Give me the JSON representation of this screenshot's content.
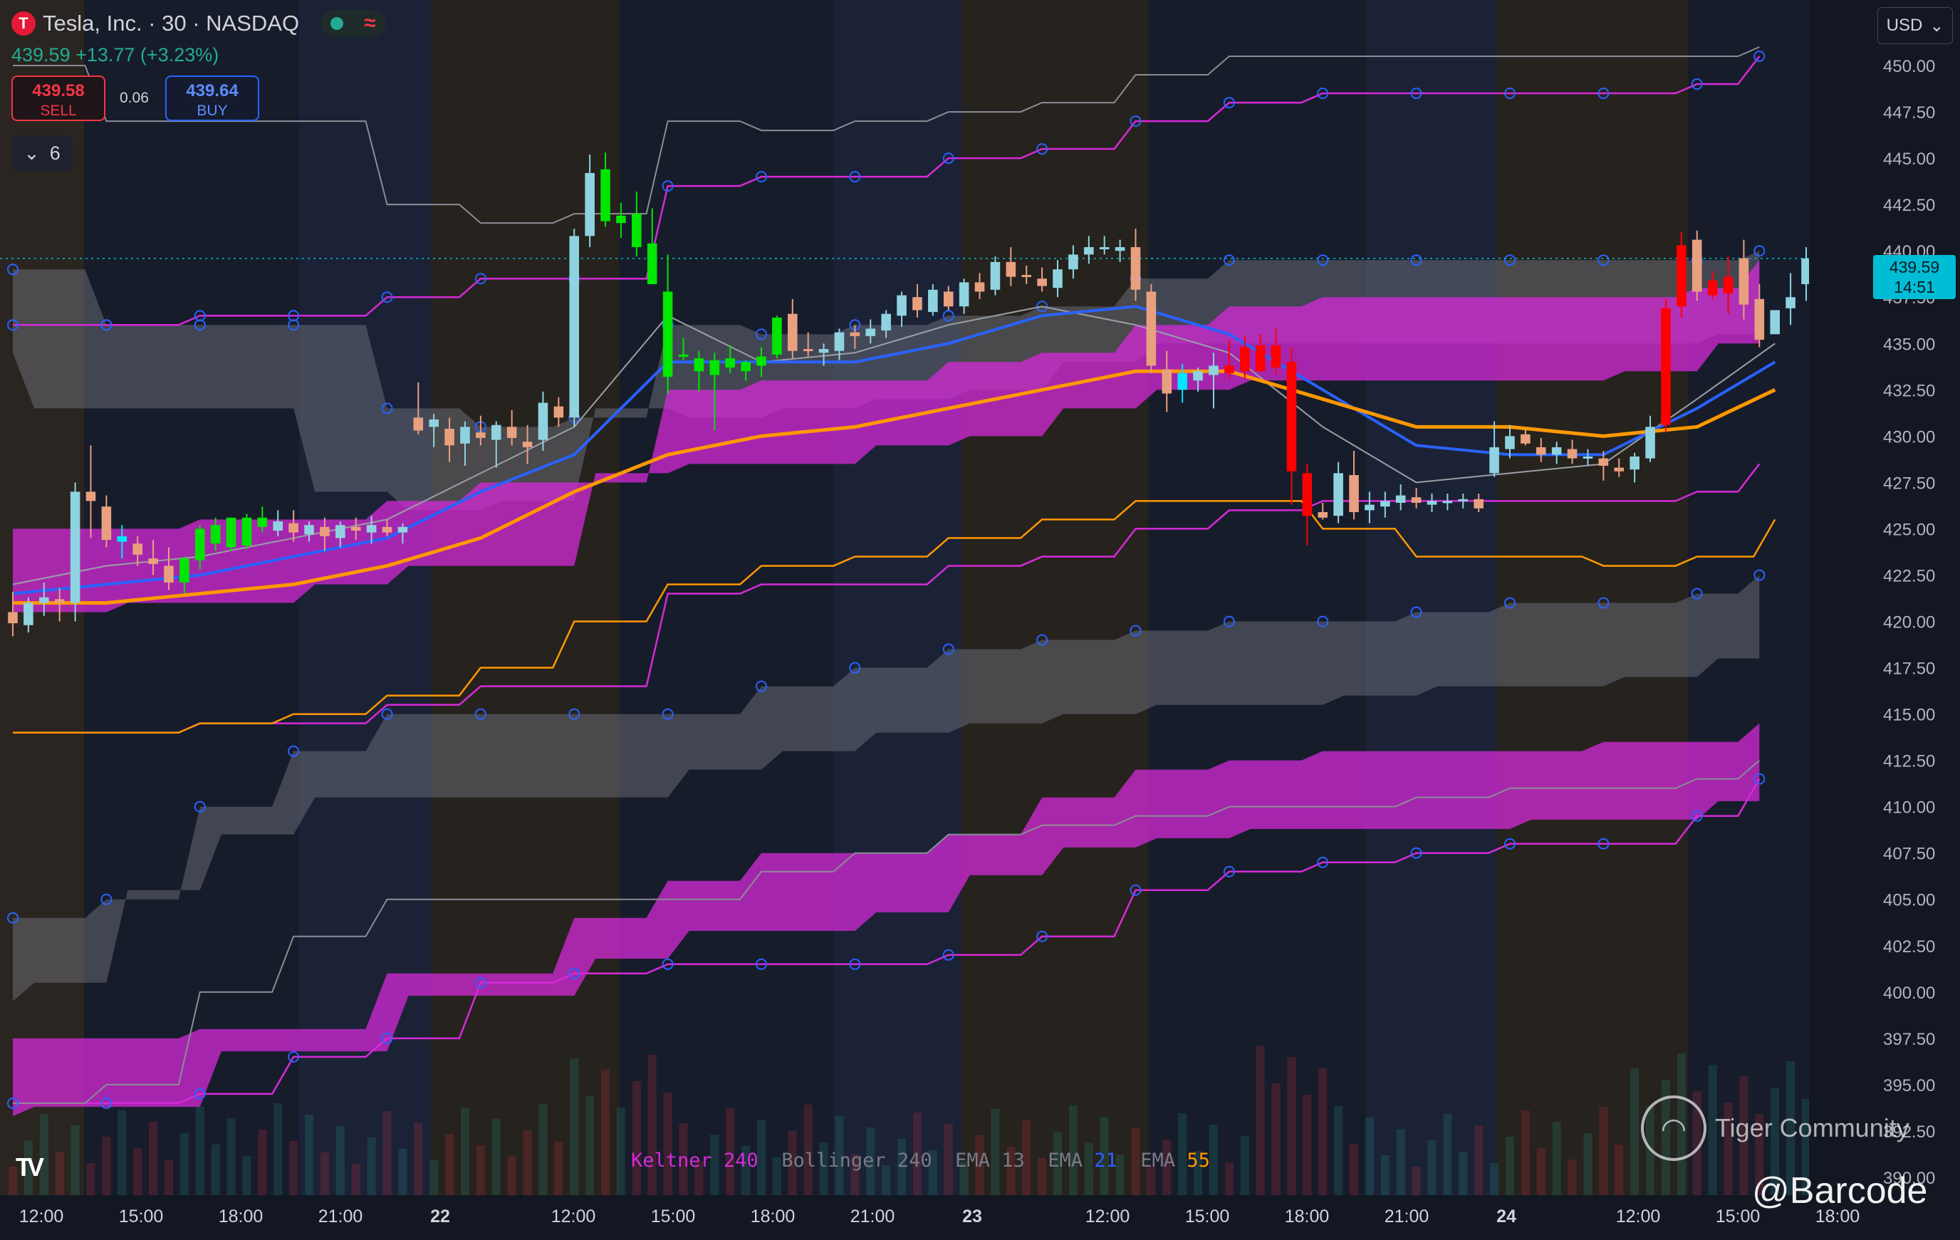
{
  "header": {
    "title": "Tesla, Inc. · 30 · NASDAQ",
    "logo_letter": "T",
    "quote": "439.59 +13.77 (+3.23%)"
  },
  "trade": {
    "sell_price": "439.58",
    "sell_label": "SELL",
    "buy_price": "439.64",
    "buy_label": "BUY",
    "spread": "0.06"
  },
  "indicator_toggle": {
    "count": "6"
  },
  "currency": "USD",
  "last_price": {
    "price": "439.59",
    "countdown": "14:51"
  },
  "legend": [
    {
      "name": "Keltner",
      "param": "240",
      "color": "#d62ad8"
    },
    {
      "name": "Bollinger",
      "param": "240",
      "color": "#787b86"
    },
    {
      "name": "EMA",
      "param": "13",
      "color": "#787b86"
    },
    {
      "name": "EMA",
      "param": "21",
      "color": "#2962ff"
    },
    {
      "name": "EMA",
      "param": "55",
      "color": "#ff9800"
    }
  ],
  "watermark": {
    "brand": "Tiger Community",
    "handle": "@Barcode"
  },
  "colors": {
    "background": "#131722",
    "bull_candle": "#8fd3e0",
    "bear_candle": "#e8a07f",
    "strong_bull": "#00e600",
    "strong_bear": "#ff0000",
    "keltner": "#d62ad8",
    "bollinger": "#8a8d96",
    "ema13": "#9aa0a6",
    "ema21": "#2962ff",
    "ema55": "#ff9800",
    "last_price": "#00bcd4"
  },
  "chart_data": {
    "type": "candlestick",
    "title": "",
    "ylim": [
      388.5,
      452
    ],
    "y_ticks": [
      "450.00",
      "447.50",
      "445.00",
      "442.50",
      "440.00",
      "437.50",
      "435.00",
      "432.50",
      "430.00",
      "427.50",
      "425.00",
      "422.50",
      "420.00",
      "417.50",
      "415.00",
      "412.50",
      "410.00",
      "407.50",
      "405.00",
      "402.50",
      "400.00",
      "397.50",
      "395.00",
      "392.50",
      "390.00"
    ],
    "x_ticks": [
      "12:00",
      "15:00",
      "18:00",
      "21:00",
      "22",
      "12:00",
      "15:00",
      "18:00",
      "21:00",
      "23",
      "12:00",
      "15:00",
      "18:00",
      "21:00",
      "24",
      "12:00",
      "15:00",
      "18:00"
    ],
    "candles": [
      [
        420.5,
        421.6,
        419.2,
        419.9
      ],
      [
        419.8,
        421.3,
        419.4,
        421.0
      ],
      [
        421.0,
        422.1,
        420.3,
        421.3
      ],
      [
        421.2,
        421.8,
        420.0,
        421.0
      ],
      [
        421.0,
        427.5,
        420.0,
        427.0
      ],
      [
        427.0,
        429.5,
        424.5,
        426.5
      ],
      [
        426.2,
        426.8,
        424.0,
        424.4
      ],
      [
        424.3,
        425.2,
        423.4,
        424.6
      ],
      [
        424.2,
        424.6,
        423.0,
        423.6
      ],
      [
        423.4,
        424.4,
        422.5,
        423.1
      ],
      [
        423.0,
        424.0,
        421.7,
        422.1
      ],
      [
        422.1,
        423.5,
        421.5,
        423.4
      ],
      [
        423.3,
        425.2,
        422.8,
        425.0
      ],
      [
        424.2,
        425.6,
        423.8,
        425.2
      ],
      [
        424.0,
        425.6,
        423.8,
        425.6
      ],
      [
        424.1,
        425.8,
        423.9,
        425.6
      ],
      [
        425.6,
        426.2,
        424.8,
        425.1
      ],
      [
        424.9,
        426.0,
        424.6,
        425.4
      ],
      [
        425.3,
        426.0,
        424.3,
        424.8
      ],
      [
        424.7,
        425.4,
        424.3,
        425.2
      ],
      [
        425.1,
        425.6,
        423.8,
        424.6
      ],
      [
        424.5,
        425.4,
        424.0,
        425.2
      ],
      [
        425.1,
        425.6,
        424.4,
        424.9
      ],
      [
        424.8,
        425.7,
        424.2,
        425.2
      ],
      [
        425.1,
        425.5,
        424.6,
        424.8
      ],
      [
        424.8,
        425.3,
        424.2,
        425.1
      ],
      [
        431.0,
        432.9,
        430.1,
        430.3
      ],
      [
        430.5,
        431.2,
        429.4,
        430.9
      ],
      [
        430.4,
        431.0,
        428.6,
        429.5
      ],
      [
        429.6,
        430.8,
        428.4,
        430.5
      ],
      [
        430.2,
        431.1,
        429.5,
        429.9
      ],
      [
        429.8,
        430.8,
        428.3,
        430.6
      ],
      [
        430.5,
        431.4,
        429.5,
        429.9
      ],
      [
        429.7,
        430.6,
        428.5,
        429.4
      ],
      [
        429.8,
        432.4,
        429.2,
        431.8
      ],
      [
        431.6,
        432.1,
        430.5,
        431.0
      ],
      [
        431.0,
        441.2,
        430.5,
        440.8
      ],
      [
        440.8,
        445.2,
        440.2,
        444.2
      ],
      [
        444.4,
        445.3,
        441.3,
        441.6
      ],
      [
        441.5,
        442.6,
        440.7,
        441.9
      ],
      [
        442.0,
        443.2,
        439.7,
        440.2
      ],
      [
        440.4,
        442.3,
        438.2,
        438.2
      ],
      [
        437.8,
        439.8,
        432.3,
        433.2
      ],
      [
        434.4,
        435.3,
        434.1,
        434.3
      ],
      [
        434.2,
        434.6,
        432.4,
        433.5
      ],
      [
        433.3,
        434.5,
        430.3,
        434.1
      ],
      [
        434.2,
        434.9,
        433.4,
        433.7
      ],
      [
        433.5,
        434.1,
        433.0,
        434.0
      ],
      [
        433.8,
        434.8,
        433.2,
        434.3
      ],
      [
        434.4,
        436.5,
        434.2,
        436.4
      ],
      [
        436.6,
        437.4,
        434.2,
        434.6
      ],
      [
        434.7,
        435.6,
        434.3,
        434.6
      ],
      [
        434.5,
        435.0,
        433.8,
        434.7
      ],
      [
        434.6,
        435.8,
        434.1,
        435.6
      ],
      [
        435.6,
        436.0,
        434.7,
        435.4
      ],
      [
        435.4,
        436.3,
        435.0,
        435.8
      ],
      [
        435.7,
        436.8,
        435.3,
        436.6
      ],
      [
        436.5,
        437.8,
        435.9,
        437.6
      ],
      [
        437.5,
        438.2,
        436.4,
        436.8
      ],
      [
        436.7,
        438.2,
        436.5,
        437.9
      ],
      [
        437.8,
        438.1,
        436.8,
        437.0
      ],
      [
        437.0,
        438.5,
        436.6,
        438.3
      ],
      [
        438.3,
        438.8,
        437.4,
        437.8
      ],
      [
        437.9,
        439.7,
        437.6,
        439.4
      ],
      [
        439.4,
        440.2,
        438.1,
        438.6
      ],
      [
        438.7,
        439.2,
        438.2,
        438.6
      ],
      [
        438.5,
        439.1,
        437.8,
        438.1
      ],
      [
        438.0,
        439.5,
        437.5,
        439.0
      ],
      [
        439.0,
        440.3,
        438.5,
        439.8
      ],
      [
        439.8,
        440.8,
        439.3,
        440.2
      ],
      [
        440.2,
        440.8,
        439.8,
        440.2
      ],
      [
        440.0,
        440.6,
        439.4,
        440.2
      ],
      [
        440.2,
        441.2,
        437.3,
        437.9
      ],
      [
        437.8,
        438.2,
        433.4,
        433.8
      ],
      [
        433.6,
        434.6,
        431.3,
        432.3
      ],
      [
        432.5,
        433.9,
        431.8,
        433.4
      ],
      [
        433.0,
        433.7,
        432.4,
        433.5
      ],
      [
        433.3,
        434.5,
        431.5,
        433.8
      ],
      [
        433.8,
        435.2,
        433.1,
        433.4
      ],
      [
        433.5,
        435.4,
        433.1,
        434.8
      ],
      [
        434.9,
        435.5,
        433.7,
        433.5
      ],
      [
        434.9,
        435.8,
        433.3,
        433.7
      ],
      [
        434.0,
        434.8,
        426.3,
        428.1
      ],
      [
        428.0,
        428.5,
        424.1,
        425.7
      ],
      [
        425.9,
        426.4,
        425.5,
        425.6
      ],
      [
        425.7,
        428.6,
        425.3,
        428.0
      ],
      [
        427.9,
        429.2,
        425.5,
        425.9
      ],
      [
        426.0,
        427.0,
        425.3,
        426.3
      ],
      [
        426.2,
        427.0,
        425.6,
        426.5
      ],
      [
        426.4,
        427.4,
        426.0,
        426.8
      ],
      [
        426.7,
        427.2,
        426.1,
        426.4
      ],
      [
        426.3,
        426.9,
        425.9,
        426.5
      ],
      [
        426.5,
        426.9,
        426.0,
        426.5
      ],
      [
        426.5,
        426.9,
        426.1,
        426.6
      ],
      [
        426.6,
        426.9,
        425.9,
        426.1
      ],
      [
        428.0,
        430.8,
        427.8,
        429.4
      ],
      [
        429.3,
        430.6,
        428.8,
        430.0
      ],
      [
        430.1,
        430.4,
        429.5,
        429.6
      ],
      [
        429.4,
        429.9,
        428.6,
        429.0
      ],
      [
        429.0,
        429.7,
        428.5,
        429.4
      ],
      [
        429.3,
        429.8,
        428.5,
        428.8
      ],
      [
        428.8,
        429.3,
        428.4,
        428.9
      ],
      [
        428.8,
        429.2,
        427.6,
        428.4
      ],
      [
        428.3,
        428.8,
        427.8,
        428.1
      ],
      [
        428.2,
        429.1,
        427.5,
        428.9
      ],
      [
        428.8,
        431.1,
        428.6,
        430.5
      ],
      [
        430.6,
        437.4,
        430.2,
        436.9
      ],
      [
        437.0,
        441.0,
        436.4,
        440.3
      ],
      [
        440.6,
        441.1,
        437.3,
        437.8
      ],
      [
        437.6,
        438.9,
        437.4,
        438.4
      ],
      [
        438.6,
        439.7,
        436.6,
        437.7
      ],
      [
        439.6,
        440.6,
        436.3,
        437.1
      ],
      [
        437.4,
        438.2,
        434.8,
        435.2
      ],
      [
        435.5,
        436.5,
        435.6,
        436.8
      ],
      [
        436.9,
        438.8,
        436.0,
        437.5
      ],
      [
        438.2,
        440.2,
        437.3,
        439.59
      ]
    ],
    "strong_candles": {
      "bull": [
        11,
        12,
        13,
        14,
        15,
        16,
        38,
        39,
        40,
        41,
        42,
        43,
        44,
        45,
        46,
        47,
        48,
        49
      ],
      "bear": [
        78,
        79,
        80,
        81,
        82,
        83,
        106,
        107,
        109,
        110
      ]
    },
    "note_cyan": [
      7,
      75
    ],
    "keltner_upper": [
      [
        0,
        436.0
      ],
      [
        6,
        436.0
      ],
      [
        12,
        436.5
      ],
      [
        18,
        436.5
      ],
      [
        24,
        437.5
      ],
      [
        30,
        438.5
      ],
      [
        36,
        438.5
      ],
      [
        42,
        443.5
      ],
      [
        48,
        444.0
      ],
      [
        54,
        444.0
      ],
      [
        60,
        445.0
      ],
      [
        66,
        445.5
      ],
      [
        72,
        447.0
      ],
      [
        78,
        448.0
      ],
      [
        84,
        448.5
      ],
      [
        90,
        448.5
      ],
      [
        96,
        448.5
      ],
      [
        102,
        448.5
      ],
      [
        108,
        449.0
      ],
      [
        112,
        450.5
      ]
    ],
    "keltner_lower": [
      [
        0,
        394.0
      ],
      [
        6,
        394.0
      ],
      [
        12,
        394.5
      ],
      [
        18,
        396.5
      ],
      [
        24,
        397.5
      ],
      [
        30,
        400.5
      ],
      [
        36,
        401.0
      ],
      [
        42,
        401.5
      ],
      [
        48,
        401.5
      ],
      [
        54,
        401.5
      ],
      [
        60,
        402.0
      ],
      [
        66,
        403.0
      ],
      [
        72,
        405.5
      ],
      [
        78,
        406.5
      ],
      [
        84,
        407.0
      ],
      [
        90,
        407.5
      ],
      [
        96,
        408.0
      ],
      [
        102,
        408.0
      ],
      [
        108,
        409.5
      ],
      [
        112,
        411.5
      ]
    ],
    "keltner_mid": [
      [
        0,
        397.5
      ],
      [
        12,
        398.0
      ],
      [
        24,
        401.0
      ],
      [
        36,
        404.0
      ],
      [
        42,
        406.0
      ],
      [
        48,
        407.5
      ],
      [
        54,
        407.5
      ],
      [
        60,
        408.5
      ],
      [
        66,
        410.5
      ],
      [
        72,
        412.0
      ],
      [
        78,
        412.5
      ],
      [
        84,
        413.0
      ],
      [
        90,
        413.0
      ],
      [
        96,
        413.0
      ],
      [
        102,
        413.5
      ],
      [
        108,
        413.5
      ],
      [
        112,
        414.5
      ]
    ],
    "bollinger_upper": [
      [
        0,
        439.0
      ],
      [
        6,
        436.0
      ],
      [
        12,
        436.0
      ],
      [
        18,
        436.0
      ],
      [
        24,
        431.5
      ],
      [
        30,
        430.5
      ],
      [
        36,
        431.0
      ],
      [
        42,
        436.0
      ],
      [
        48,
        435.5
      ],
      [
        54,
        436.0
      ],
      [
        60,
        436.5
      ],
      [
        66,
        437.0
      ],
      [
        72,
        438.5
      ],
      [
        78,
        439.5
      ],
      [
        84,
        439.5
      ],
      [
        90,
        439.5
      ],
      [
        96,
        439.5
      ],
      [
        102,
        439.5
      ],
      [
        108,
        439.5
      ],
      [
        112,
        440.0
      ]
    ],
    "bollinger_lower": [
      [
        0,
        404.0
      ],
      [
        6,
        405.0
      ],
      [
        12,
        410.0
      ],
      [
        18,
        413.0
      ],
      [
        24,
        415.0
      ],
      [
        30,
        415.0
      ],
      [
        36,
        415.0
      ],
      [
        42,
        415.0
      ],
      [
        48,
        416.5
      ],
      [
        54,
        417.5
      ],
      [
        60,
        418.5
      ],
      [
        66,
        419.0
      ],
      [
        72,
        419.5
      ],
      [
        78,
        420.0
      ],
      [
        84,
        420.0
      ],
      [
        90,
        420.5
      ],
      [
        96,
        421.0
      ],
      [
        102,
        421.0
      ],
      [
        108,
        421.5
      ],
      [
        112,
        422.5
      ]
    ],
    "ema13": [
      [
        0,
        422.0
      ],
      [
        6,
        423.0
      ],
      [
        12,
        423.5
      ],
      [
        18,
        424.5
      ],
      [
        24,
        425.5
      ],
      [
        30,
        428.0
      ],
      [
        36,
        430.5
      ],
      [
        42,
        436.5
      ],
      [
        48,
        434.0
      ],
      [
        54,
        434.5
      ],
      [
        60,
        436.0
      ],
      [
        66,
        437.0
      ],
      [
        72,
        436.0
      ],
      [
        78,
        434.5
      ],
      [
        84,
        430.5
      ],
      [
        90,
        427.5
      ],
      [
        96,
        428.0
      ],
      [
        102,
        428.5
      ],
      [
        108,
        432.0
      ],
      [
        113,
        435.0
      ]
    ],
    "ema21": [
      [
        0,
        421.5
      ],
      [
        6,
        422.0
      ],
      [
        12,
        422.5
      ],
      [
        18,
        423.5
      ],
      [
        24,
        424.5
      ],
      [
        30,
        427.0
      ],
      [
        36,
        429.0
      ],
      [
        42,
        434.0
      ],
      [
        48,
        434.0
      ],
      [
        54,
        434.0
      ],
      [
        60,
        435.0
      ],
      [
        66,
        436.5
      ],
      [
        72,
        437.0
      ],
      [
        78,
        435.5
      ],
      [
        84,
        432.5
      ],
      [
        90,
        429.5
      ],
      [
        96,
        429.0
      ],
      [
        102,
        429.0
      ],
      [
        108,
        431.5
      ],
      [
        113,
        434.0
      ]
    ],
    "ema55": [
      [
        0,
        421.0
      ],
      [
        6,
        421.0
      ],
      [
        12,
        421.5
      ],
      [
        18,
        422.0
      ],
      [
        24,
        423.0
      ],
      [
        30,
        424.5
      ],
      [
        36,
        427.0
      ],
      [
        42,
        429.0
      ],
      [
        48,
        430.0
      ],
      [
        54,
        430.5
      ],
      [
        60,
        431.5
      ],
      [
        66,
        432.5
      ],
      [
        72,
        433.5
      ],
      [
        78,
        433.5
      ],
      [
        84,
        432.0
      ],
      [
        90,
        430.5
      ],
      [
        96,
        430.5
      ],
      [
        102,
        430.0
      ],
      [
        108,
        430.5
      ],
      [
        113,
        432.5
      ]
    ],
    "last_price_line": 439.59
  }
}
